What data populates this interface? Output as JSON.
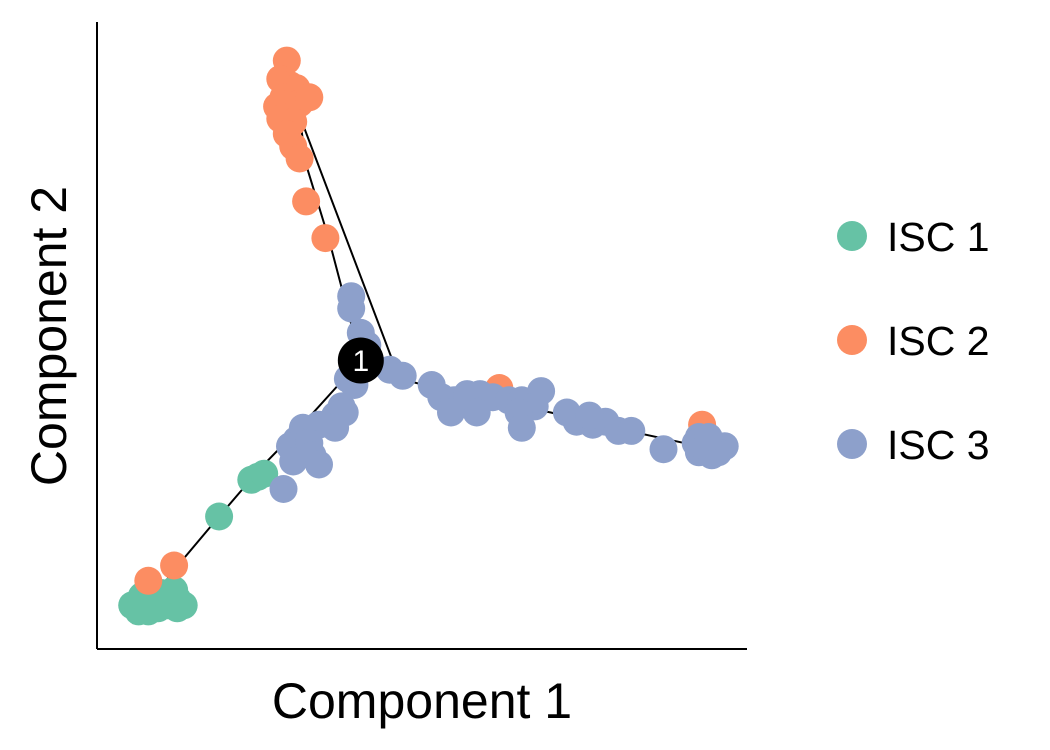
{
  "chart_data": {
    "type": "scatter",
    "xlabel": "Component 1",
    "ylabel": "Component 2",
    "xlim": [
      0,
      100
    ],
    "ylim": [
      0,
      100
    ],
    "grid": false,
    "legend_position": "right",
    "branch_node": {
      "label": "1",
      "x": 40.5,
      "y": 46
    },
    "trajectory": [
      [
        5,
        3
      ],
      [
        12.5,
        13
      ],
      [
        18.5,
        20.5
      ],
      [
        25,
        28.5
      ],
      [
        31,
        35
      ],
      [
        37,
        42
      ],
      [
        40.5,
        46
      ],
      [
        38,
        56
      ],
      [
        35.5,
        66
      ],
      [
        32,
        78
      ],
      [
        31,
        86
      ],
      [
        46.5,
        43
      ],
      [
        58,
        40
      ],
      [
        70,
        37.5
      ],
      [
        82,
        34.5
      ],
      [
        93,
        32
      ]
    ],
    "series": [
      {
        "name": "ISC 1",
        "color": "#66c2a5",
        "points": [
          [
            5,
            6
          ],
          [
            6,
            5
          ],
          [
            7,
            6.5
          ],
          [
            8,
            6
          ],
          [
            9,
            5.5
          ],
          [
            10,
            7
          ],
          [
            11,
            6.5
          ],
          [
            12,
            7
          ],
          [
            13,
            6
          ],
          [
            6.5,
            7.5
          ],
          [
            8.5,
            7.5
          ],
          [
            10.5,
            6
          ],
          [
            7.5,
            5
          ],
          [
            12,
            5.5
          ],
          [
            9.5,
            8
          ],
          [
            11.5,
            8.5
          ],
          [
            18.5,
            20.5
          ],
          [
            23.5,
            26.5
          ],
          [
            24.5,
            27
          ],
          [
            25.5,
            27.5
          ]
        ]
      },
      {
        "name": "ISC 2",
        "color": "#fc8d62",
        "points": [
          [
            7.5,
            10
          ],
          [
            11.5,
            12.5
          ],
          [
            29,
            95
          ],
          [
            28,
            92
          ],
          [
            29.5,
            91
          ],
          [
            30.5,
            90.5
          ],
          [
            28.5,
            89
          ],
          [
            27.5,
            87.5
          ],
          [
            29.5,
            88
          ],
          [
            31,
            88
          ],
          [
            32.5,
            89
          ],
          [
            28,
            85.5
          ],
          [
            30,
            85
          ],
          [
            29,
            83
          ],
          [
            30,
            81
          ],
          [
            31,
            79
          ],
          [
            32,
            72
          ],
          [
            35,
            66
          ],
          [
            62,
            41.5
          ],
          [
            93.5,
            35.5
          ]
        ]
      },
      {
        "name": "ISC 3",
        "color": "#8da0cb",
        "points": [
          [
            39,
            56.5
          ],
          [
            39,
            54.5
          ],
          [
            40.5,
            50.5
          ],
          [
            41.5,
            48.5
          ],
          [
            40,
            46.5
          ],
          [
            38.5,
            43
          ],
          [
            39.5,
            42
          ],
          [
            37.5,
            38.5
          ],
          [
            36.5,
            37
          ],
          [
            38,
            37.5
          ],
          [
            36.5,
            35
          ],
          [
            34,
            35.5
          ],
          [
            31.5,
            35
          ],
          [
            30.5,
            33
          ],
          [
            29.5,
            32
          ],
          [
            32.5,
            32.5
          ],
          [
            33,
            30.5
          ],
          [
            30,
            29.5
          ],
          [
            34,
            29
          ],
          [
            28.5,
            25
          ],
          [
            45,
            44.5
          ],
          [
            47,
            43.5
          ],
          [
            51.5,
            42
          ],
          [
            53,
            40
          ],
          [
            55,
            39.5
          ],
          [
            57,
            40.5
          ],
          [
            59,
            40.5
          ],
          [
            61,
            40
          ],
          [
            63.5,
            39.5
          ],
          [
            65.5,
            39.5
          ],
          [
            68.5,
            41
          ],
          [
            67.5,
            38.5
          ],
          [
            65,
            37.5
          ],
          [
            58.5,
            37.5
          ],
          [
            54.5,
            37.5
          ],
          [
            65.5,
            35
          ],
          [
            72.5,
            37.5
          ],
          [
            74,
            36
          ],
          [
            76.5,
            35.5
          ],
          [
            78.5,
            36
          ],
          [
            80.5,
            34.5
          ],
          [
            82.5,
            34.5
          ],
          [
            76,
            37
          ],
          [
            87.5,
            31.5
          ],
          [
            93,
            33.5
          ],
          [
            94,
            32.5
          ],
          [
            95,
            32
          ],
          [
            96,
            31.5
          ],
          [
            93,
            31
          ],
          [
            95,
            30.5
          ],
          [
            97,
            32
          ],
          [
            96,
            31
          ],
          [
            92.5,
            32.5
          ],
          [
            94.5,
            33.5
          ]
        ]
      }
    ]
  }
}
